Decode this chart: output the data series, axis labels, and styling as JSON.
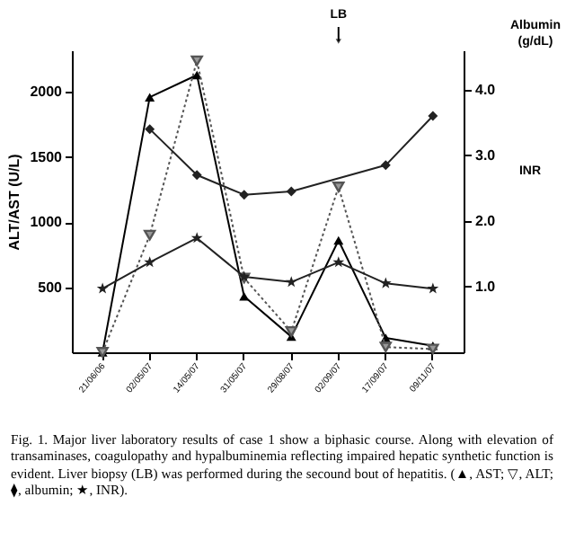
{
  "chart_data": {
    "type": "line",
    "ylabel": "ALT/AST (U/L)",
    "y2label": "Albumin (g/dL)",
    "categories": [
      "21/06/06",
      "02/05/07",
      "14/05/07",
      "31/05/07",
      "29/08/07",
      "02/09/07",
      "17/09/07",
      "09/11/07"
    ],
    "series": [
      {
        "color": "#000000",
        "marker": "triangle",
        "line_style": "solid",
        "values": [
          0,
          1960,
          2130,
          430,
          120,
          860,
          110,
          50
        ]
      },
      {
        "color": "#555555",
        "marker": "triangle-down",
        "line_style": "dotted",
        "values": [
          0,
          900,
          2240,
          570,
          160,
          1270,
          40,
          25
        ]
      },
      {
        "color": "#222222",
        "marker": "diamond",
        "line_style": "solid",
        "axis": "y2",
        "values": [
          null,
          3.4,
          2.7,
          2.4,
          2.45,
          null,
          2.85,
          3.6
        ]
      },
      {
        "color": "#222222",
        "marker": "star",
        "line_style": "solid",
        "axis": "y2",
        "values": [
          0.97,
          1.37,
          1.74,
          1.15,
          1.07,
          1.37,
          1.05,
          0.97
        ]
      }
    ],
    "ylim": [
      0,
      2320
    ],
    "yticks": [
      500,
      1000,
      1500,
      2000
    ],
    "y2lim": [
      0,
      4.6
    ],
    "y2ticks": [
      {
        "value": 1,
        "label": "1.0"
      },
      {
        "value": 2,
        "label": "2.0"
      },
      {
        "value": 3,
        "label": "3.0"
      },
      {
        "value": 4,
        "label": "4.0"
      }
    ],
    "grid": false,
    "annotations": [
      {
        "text": "LB",
        "x": "02/09/07"
      },
      "INR",
      "Fig. 1.  Major liver laboratory results of case 1 show a biphasic course. Along with elevation of transaminases, coagulopathy and hypalbuminemia reflecting impaired hepatic synthetic function is evident. Liver biopsy (LB) was performed during the secound bout of hepatitis. (▲, AST; ▽, ALT; ⧫, albumin; ★, INR)."
    ]
  }
}
